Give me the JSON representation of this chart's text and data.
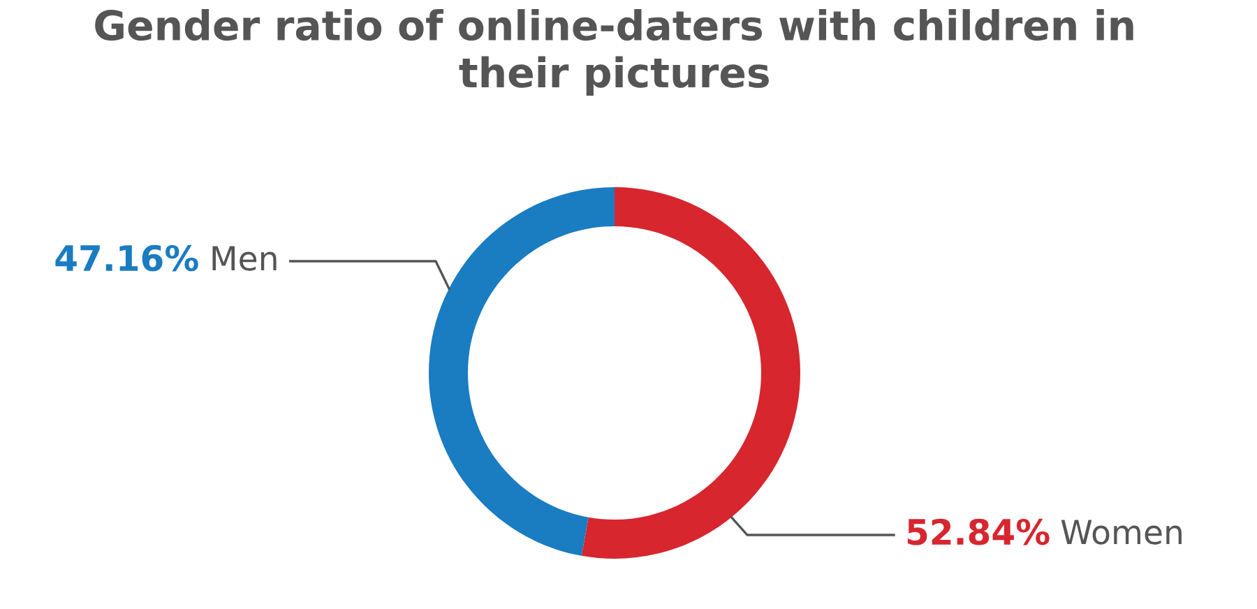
{
  "chart_data": {
    "type": "donut",
    "title": "Gender ratio of online-daters with children in\ntheir pictures",
    "categories": [
      "Women",
      "Men"
    ],
    "values": [
      52.84,
      47.16
    ],
    "colors": [
      "#d7262e",
      "#1a7cc1"
    ],
    "value_labels": [
      "52.84%",
      "47.16%"
    ],
    "legend": false
  }
}
